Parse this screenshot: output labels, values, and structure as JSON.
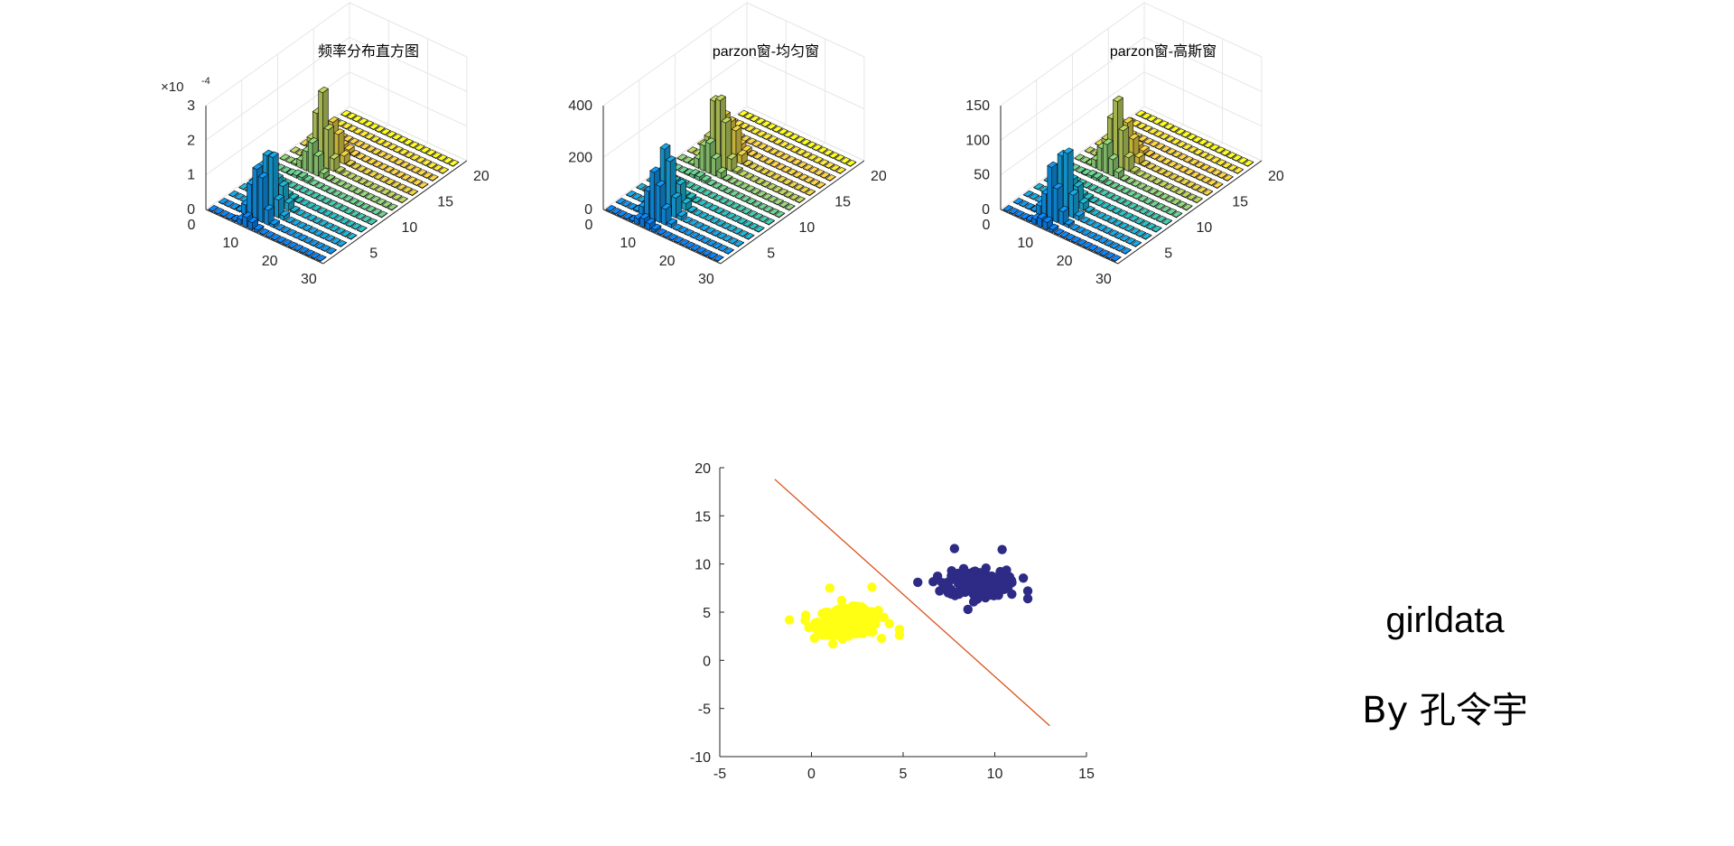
{
  "colors": {
    "axis": "#262626",
    "grid": "#e6e6e6",
    "class1": "#ffff14",
    "class2": "#2e2b86",
    "boundary": "#d95319"
  },
  "caption": {
    "title": "girldata",
    "author": "By 孔令宇"
  },
  "chart_data": [
    {
      "type": "bar3",
      "title": "频率分布直方图",
      "exponent_label": "×10",
      "exponent_power": "-4",
      "xticks": [
        "0",
        "10",
        "20",
        "30"
      ],
      "yticks": [
        "5",
        "10",
        "15",
        "20"
      ],
      "zticks": [
        "0",
        "1",
        "2",
        "3"
      ],
      "xlim": [
        0,
        30
      ],
      "ylim": [
        0,
        20
      ],
      "zlim": [
        0,
        3
      ],
      "grid": true,
      "peaks": [
        {
          "center": [
            10,
            3
          ],
          "height": 2.3
        },
        {
          "center": [
            8,
            12
          ],
          "height": 2.2
        }
      ]
    },
    {
      "type": "bar3",
      "title": "parzon窗-均匀窗",
      "xticks": [
        "0",
        "10",
        "20",
        "30"
      ],
      "yticks": [
        "5",
        "10",
        "15",
        "20"
      ],
      "zticks": [
        "0",
        "200",
        "400"
      ],
      "xlim": [
        0,
        30
      ],
      "ylim": [
        0,
        20
      ],
      "zlim": [
        0,
        400
      ],
      "grid": true,
      "peaks": [
        {
          "center": [
            10,
            3
          ],
          "height": 330
        },
        {
          "center": [
            8,
            12
          ],
          "height": 320
        }
      ]
    },
    {
      "type": "bar3",
      "title": "parzon窗-高斯窗",
      "xticks": [
        "0",
        "10",
        "20",
        "30"
      ],
      "yticks": [
        "5",
        "10",
        "15",
        "20"
      ],
      "zticks": [
        "0",
        "50",
        "100",
        "150"
      ],
      "xlim": [
        0,
        30
      ],
      "ylim": [
        0,
        20
      ],
      "zlim": [
        0,
        150
      ],
      "grid": true,
      "peaks": [
        {
          "center": [
            10,
            3
          ],
          "height": 110
        },
        {
          "center": [
            8,
            12
          ],
          "height": 105
        }
      ]
    },
    {
      "type": "scatter",
      "xlim": [
        -5,
        15
      ],
      "ylim": [
        -10,
        20
      ],
      "xticks": [
        "-5",
        "0",
        "5",
        "10",
        "15"
      ],
      "yticks": [
        "-10",
        "-5",
        "0",
        "5",
        "10",
        "15",
        "20"
      ],
      "series": [
        {
          "color": "#ffff14",
          "center": [
            2,
            4
          ],
          "spread": [
            0.9,
            0.9
          ],
          "count": 300,
          "extremes": [
            [
              -1.2,
              4.2
            ],
            [
              3.3,
              7.6
            ],
            [
              4.8,
              2.6
            ],
            [
              4.8,
              3.2
            ],
            [
              1,
              7.5
            ]
          ]
        },
        {
          "color": "#2e2b86",
          "center": [
            9,
            8
          ],
          "spread": [
            0.9,
            0.9
          ],
          "count": 300,
          "extremes": [
            [
              5.8,
              8.1
            ],
            [
              7.8,
              11.6
            ],
            [
              10.4,
              11.5
            ],
            [
              11.8,
              6.4
            ],
            [
              11.8,
              7.2
            ]
          ]
        }
      ],
      "boundary": {
        "x": [
          -2,
          13
        ],
        "y": [
          18.8,
          -6.8
        ]
      }
    }
  ]
}
